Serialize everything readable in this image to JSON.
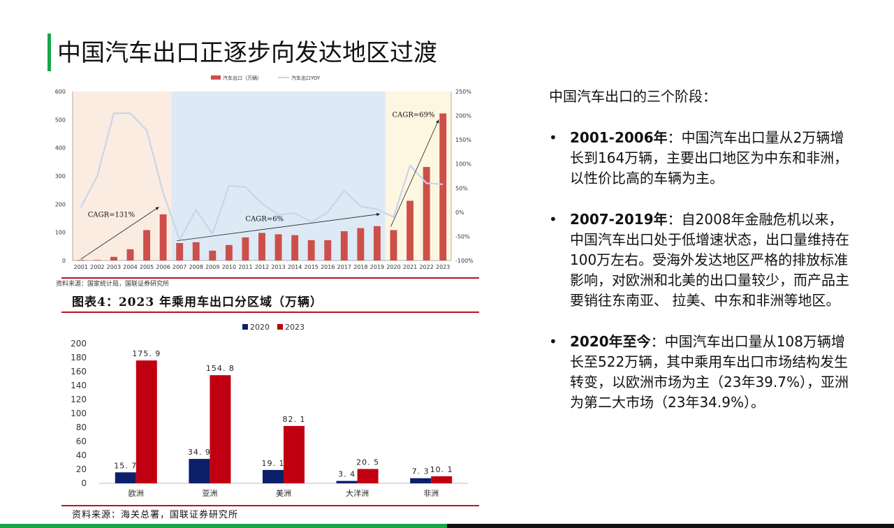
{
  "title": "中国汽车出口正逐步向发达地区过渡",
  "chart1_source": "资料来源：国家统计局，国联证券研究所",
  "figure2_title": "图表4：2023 年乘用车出口分区域（万辆）",
  "chart2_source": "资料来源：海关总署，国联证券研究所",
  "right_panel": {
    "intro": "中国汽车出口的三个阶段：",
    "bullets": [
      {
        "head": "2001-2006年",
        "text": "：中国汽车出口量从2万辆增长到164万辆，主要出口地区为中东和非洲，以性价比高的车辆为主。"
      },
      {
        "head": "2007-2019年",
        "text": "：自2008年金融危机以来，中国汽车出口处于低增速状态，出口量维持在100万左右。受海外发达地区严格的排放标准影响，对欧洲和北美的出口量较少，而产品主要销往东南亚、 拉美、中东和非洲等地区。"
      },
      {
        "head": "2020年至今",
        "text": "：中国汽车出口量从108万辆增长至522万辆，其中乘用车出口市场结构发生转变，以欧洲市场为主（23年39.7%），亚洲为第二大市场（23年34.9%）。"
      }
    ],
    "bullet_symbol": "•"
  },
  "chart_data": [
    {
      "type": "bar",
      "categories": [
        "2001",
        "2002",
        "2003",
        "2004",
        "2005",
        "2006",
        "2007",
        "2008",
        "2009",
        "2010",
        "2011",
        "2012",
        "2013",
        "2014",
        "2015",
        "2016",
        "2017",
        "2018",
        "2019",
        "2020",
        "2021",
        "2022",
        "2023"
      ],
      "series": [
        {
          "name": "汽车出口（万辆）",
          "axis": "left",
          "type": "bar",
          "color": "#cd4f4a",
          "values": [
            2,
            2,
            13,
            40,
            108,
            164,
            62,
            65,
            35,
            55,
            82,
            98,
            93,
            90,
            72,
            72,
            104,
            115,
            122,
            108,
            212,
            332,
            522
          ]
        },
        {
          "name": "汽车出口YOY",
          "axis": "right",
          "type": "line",
          "color": "#c7d6ea",
          "values": [
            10,
            75,
            205,
            205,
            170,
            40,
            -57,
            5,
            -45,
            55,
            52,
            18,
            -5,
            -2,
            -20,
            0,
            45,
            12,
            6,
            -10,
            97,
            60,
            58
          ]
        }
      ],
      "y_left": {
        "min": 0,
        "max": 600,
        "ticks": [
          "0",
          "100",
          "200",
          "300",
          "400",
          "500",
          "600"
        ]
      },
      "y_right": {
        "min": -100,
        "max": 250,
        "ticks": [
          "-100%",
          "-50%",
          "0%",
          "50%",
          "100%",
          "150%",
          "200%",
          "250%"
        ]
      },
      "background_regions": [
        {
          "from": "2001",
          "to": "2006",
          "color": "#fbece2"
        },
        {
          "from": "2007",
          "to": "2019",
          "color": "#dde9f5"
        },
        {
          "from": "2020",
          "to": "2023",
          "color": "#fdf6e1"
        }
      ],
      "annotations": [
        {
          "text": "CAGR=131%"
        },
        {
          "text": "CAGR=6%"
        },
        {
          "text": "CAGR=69%"
        }
      ],
      "legend_position": "top"
    },
    {
      "type": "bar",
      "categories": [
        "欧洲",
        "亚洲",
        "美洲",
        "大洋洲",
        "非洲"
      ],
      "series": [
        {
          "name": "2020",
          "color": "#0b1f6b",
          "values": [
            15.7,
            34.9,
            19.1,
            3.4,
            7.3
          ],
          "labels": [
            "15. 7",
            "34. 9",
            "19. 1",
            "3. 4",
            "7. 3"
          ]
        },
        {
          "name": "2023",
          "color": "#c00010",
          "values": [
            175.9,
            154.8,
            82.1,
            20.5,
            10.1
          ],
          "labels": [
            "175. 9",
            "154. 8",
            "82. 1",
            "20. 5",
            "10. 1"
          ]
        }
      ],
      "ylim": [
        0,
        200
      ],
      "y_ticks": [
        "0",
        "20",
        "40",
        "60",
        "80",
        "100",
        "120",
        "140",
        "160",
        "180",
        "200"
      ],
      "legend_position": "top"
    }
  ]
}
